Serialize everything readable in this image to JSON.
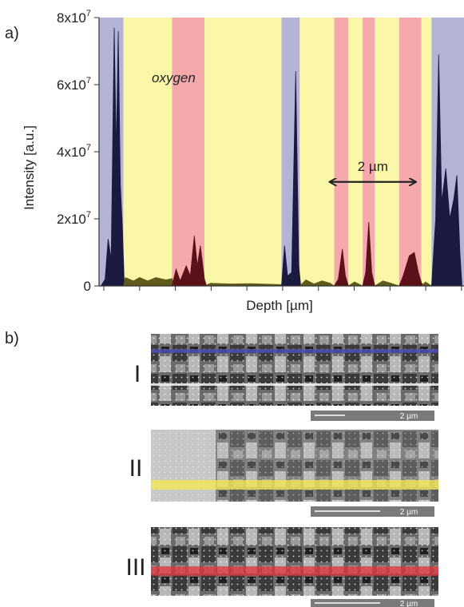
{
  "panel_a": {
    "label": "a)",
    "ylabel": "Intensity [a.u.]",
    "xlabel": "Depth [µm]",
    "annotation": "oxygen",
    "scale_label": "2 µm"
  },
  "panel_b": {
    "label": "b)",
    "images": [
      {
        "label": "I",
        "scale_label": "2 µm"
      },
      {
        "label": "II",
        "scale_label": "2 µm"
      },
      {
        "label": "III",
        "scale_label": "2 µm"
      }
    ]
  },
  "chart_data": {
    "type": "area",
    "ylim": [
      0,
      80000000
    ],
    "y_ticks": [
      {
        "value": 0,
        "label": "0"
      },
      {
        "value": 20000000,
        "mant": "2x10",
        "exp": "7"
      },
      {
        "value": 40000000,
        "mant": "4x10",
        "exp": "7"
      },
      {
        "value": 60000000,
        "mant": "6x10",
        "exp": "7"
      },
      {
        "value": 80000000,
        "mant": "8x10",
        "exp": "7"
      }
    ],
    "xlim": [
      0,
      18
    ],
    "x_tick_count": 10,
    "colors": {
      "blue": "#b3b3d8",
      "yellow": "#fbf7a8",
      "red": "#f5a9ad",
      "dark": "#1a1a40",
      "olive": "#5e5a1a",
      "maroon": "#5c1018"
    },
    "regions": [
      {
        "start": 0,
        "end": 1.2,
        "color": "blue"
      },
      {
        "start": 1.2,
        "end": 3.6,
        "color": "yellow"
      },
      {
        "start": 3.6,
        "end": 5.2,
        "color": "red"
      },
      {
        "start": 5.2,
        "end": 9.0,
        "color": "yellow"
      },
      {
        "start": 9.0,
        "end": 9.9,
        "color": "blue"
      },
      {
        "start": 9.9,
        "end": 11.6,
        "color": "yellow"
      },
      {
        "start": 11.6,
        "end": 12.3,
        "color": "red"
      },
      {
        "start": 12.3,
        "end": 13.0,
        "color": "yellow"
      },
      {
        "start": 13.0,
        "end": 13.6,
        "color": "red"
      },
      {
        "start": 13.6,
        "end": 14.8,
        "color": "yellow"
      },
      {
        "start": 14.8,
        "end": 15.9,
        "color": "red"
      },
      {
        "start": 15.9,
        "end": 16.4,
        "color": "yellow"
      },
      {
        "start": 16.4,
        "end": 18.0,
        "color": "blue"
      }
    ],
    "series": [
      {
        "color": "dark",
        "points": [
          [
            0.1,
            0
          ],
          [
            0.3,
            2000000
          ],
          [
            0.45,
            14000000
          ],
          [
            0.6,
            8000000
          ],
          [
            0.75,
            77000000
          ],
          [
            0.85,
            40000000
          ],
          [
            0.95,
            76000000
          ],
          [
            1.05,
            30000000
          ],
          [
            1.15,
            18000000
          ],
          [
            1.25,
            0
          ]
        ]
      },
      {
        "color": "olive",
        "points": [
          [
            1.2,
            0
          ],
          [
            1.3,
            2500000
          ],
          [
            1.7,
            1500000
          ],
          [
            2.0,
            2500000
          ],
          [
            2.4,
            1500000
          ],
          [
            2.8,
            2500000
          ],
          [
            3.3,
            1800000
          ],
          [
            3.6,
            2200000
          ],
          [
            3.7,
            0
          ]
        ]
      },
      {
        "color": "maroon",
        "points": [
          [
            3.6,
            0
          ],
          [
            3.8,
            5000000
          ],
          [
            4.0,
            1500000
          ],
          [
            4.3,
            6000000
          ],
          [
            4.5,
            3000000
          ],
          [
            4.7,
            15000000
          ],
          [
            4.85,
            6000000
          ],
          [
            5.0,
            12000000
          ],
          [
            5.2,
            2000000
          ],
          [
            5.3,
            0
          ]
        ]
      },
      {
        "color": "olive",
        "points": [
          [
            5.2,
            0
          ],
          [
            5.5,
            800000
          ],
          [
            6.5,
            600000
          ],
          [
            7.5,
            700000
          ],
          [
            8.5,
            500000
          ],
          [
            9.0,
            400000
          ],
          [
            9.1,
            0
          ]
        ]
      },
      {
        "color": "dark",
        "points": [
          [
            9.0,
            0
          ],
          [
            9.15,
            12000000
          ],
          [
            9.3,
            3000000
          ],
          [
            9.5,
            4000000
          ],
          [
            9.7,
            64000000
          ],
          [
            9.85,
            6000000
          ],
          [
            9.95,
            0
          ]
        ]
      },
      {
        "color": "olive",
        "points": [
          [
            9.9,
            0
          ],
          [
            10.2,
            1800000
          ],
          [
            10.6,
            600000
          ],
          [
            11.0,
            1500000
          ],
          [
            11.4,
            800000
          ],
          [
            11.6,
            0
          ]
        ]
      },
      {
        "color": "maroon",
        "points": [
          [
            11.6,
            0
          ],
          [
            11.8,
            2000000
          ],
          [
            12.0,
            11000000
          ],
          [
            12.15,
            3000000
          ],
          [
            12.3,
            0
          ]
        ]
      },
      {
        "color": "olive",
        "points": [
          [
            12.3,
            0
          ],
          [
            12.6,
            1200000
          ],
          [
            13.0,
            0
          ]
        ]
      },
      {
        "color": "maroon",
        "points": [
          [
            13.0,
            0
          ],
          [
            13.15,
            4000000
          ],
          [
            13.3,
            19000000
          ],
          [
            13.45,
            4000000
          ],
          [
            13.6,
            0
          ]
        ]
      },
      {
        "color": "olive",
        "points": [
          [
            13.6,
            0
          ],
          [
            14.0,
            1500000
          ],
          [
            14.4,
            800000
          ],
          [
            14.8,
            0
          ]
        ]
      },
      {
        "color": "maroon",
        "points": [
          [
            14.8,
            0
          ],
          [
            15.0,
            3000000
          ],
          [
            15.3,
            9000000
          ],
          [
            15.55,
            10000000
          ],
          [
            15.75,
            4000000
          ],
          [
            15.9,
            1000000
          ],
          [
            16.0,
            0
          ]
        ]
      },
      {
        "color": "olive",
        "points": [
          [
            15.9,
            0
          ],
          [
            16.1,
            1200000
          ],
          [
            16.4,
            0
          ]
        ]
      },
      {
        "color": "dark",
        "points": [
          [
            16.4,
            0
          ],
          [
            16.6,
            20000000
          ],
          [
            16.75,
            69000000
          ],
          [
            16.9,
            25000000
          ],
          [
            17.1,
            35000000
          ],
          [
            17.3,
            20000000
          ],
          [
            17.5,
            26000000
          ],
          [
            17.65,
            33000000
          ],
          [
            17.8,
            10000000
          ],
          [
            17.9,
            0
          ]
        ]
      }
    ],
    "arrow": {
      "start": 11.4,
      "end": 15.6,
      "value": 31000000
    }
  }
}
